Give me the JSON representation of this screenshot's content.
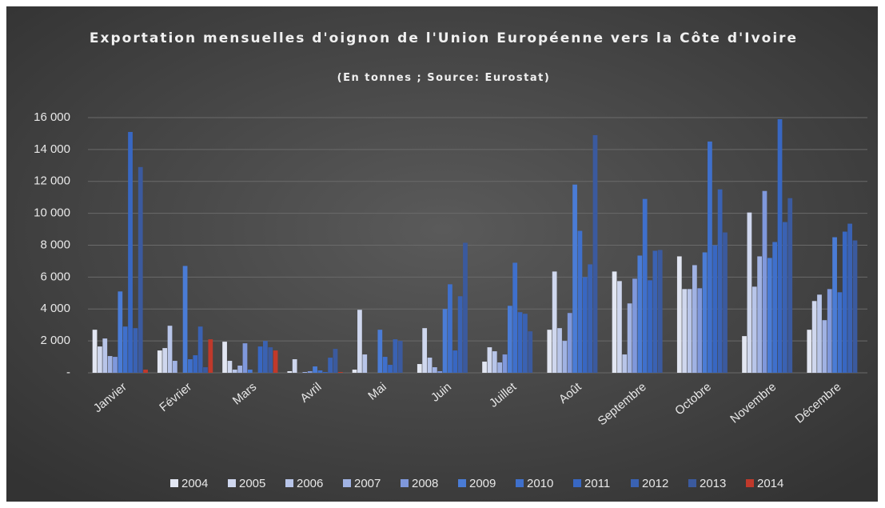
{
  "chart_data": {
    "type": "bar",
    "title": "Exportation mensuelles d'oignon de l'Union Européenne vers la Côte d'Ivoire",
    "subtitle": "(En tonnes ; Source: Eurostat)",
    "categories": [
      "Janvier",
      "Février",
      "Mars",
      "Avril",
      "Mai",
      "Juin",
      "Juillet",
      "Août",
      "Septembre",
      "Octobre",
      "Novembre",
      "Décembre"
    ],
    "series": [
      {
        "name": "2004",
        "color": "#e2e6f2",
        "values": [
          2700,
          1400,
          1950,
          100,
          200,
          550,
          700,
          2700,
          6350,
          7300,
          2300,
          2700
        ]
      },
      {
        "name": "2005",
        "color": "#cfd7ee",
        "values": [
          1650,
          1550,
          750,
          850,
          3950,
          2800,
          1600,
          6350,
          5750,
          5250,
          10050,
          4500
        ]
      },
      {
        "name": "2006",
        "color": "#b8c5e9",
        "values": [
          2150,
          2950,
          200,
          0,
          1150,
          950,
          1350,
          2800,
          1150,
          5250,
          5400,
          4900
        ]
      },
      {
        "name": "2007",
        "color": "#a0b2e3",
        "values": [
          1050,
          750,
          450,
          50,
          0,
          350,
          650,
          2000,
          4350,
          6750,
          7300,
          3300
        ]
      },
      {
        "name": "2008",
        "color": "#7f98dc",
        "values": [
          1000,
          0,
          1850,
          100,
          0,
          100,
          1150,
          3750,
          5900,
          5300,
          11400,
          5250
        ]
      },
      {
        "name": "2009",
        "color": "#4a7cd6",
        "values": [
          5100,
          6700,
          200,
          400,
          2700,
          4000,
          4200,
          11800,
          7350,
          7550,
          7200,
          8500
        ]
      },
      {
        "name": "2010",
        "color": "#3f70cc",
        "values": [
          2900,
          850,
          0,
          150,
          1000,
          5550,
          6900,
          8900,
          10900,
          14500,
          8200,
          5050
        ]
      },
      {
        "name": "2011",
        "color": "#3867c2",
        "values": [
          15100,
          1100,
          1650,
          50,
          500,
          1400,
          3800,
          6000,
          5800,
          8000,
          15900,
          8850
        ]
      },
      {
        "name": "2012",
        "color": "#3a62b3",
        "values": [
          2800,
          2900,
          2000,
          950,
          2100,
          4800,
          3700,
          6800,
          7650,
          11500,
          9450,
          9350
        ]
      },
      {
        "name": "2013",
        "color": "#3b5a9e",
        "values": [
          12900,
          350,
          1600,
          1500,
          2000,
          8150,
          2600,
          14900,
          7700,
          8800,
          10950,
          8300
        ]
      },
      {
        "name": "2014",
        "color": "#c0392b",
        "values": [
          200,
          2100,
          1400,
          50,
          null,
          null,
          null,
          null,
          null,
          null,
          null,
          null
        ]
      }
    ],
    "ylim": [
      0,
      16000
    ],
    "yticks": [
      {
        "value": 0,
        "label": "-"
      },
      {
        "value": 2000,
        "label": "2 000"
      },
      {
        "value": 4000,
        "label": "4 000"
      },
      {
        "value": 6000,
        "label": "6 000"
      },
      {
        "value": 8000,
        "label": "8 000"
      },
      {
        "value": 10000,
        "label": "10 000"
      },
      {
        "value": 12000,
        "label": "12 000"
      },
      {
        "value": 14000,
        "label": "14 000"
      },
      {
        "value": 16000,
        "label": "16 000"
      }
    ],
    "grid": true
  }
}
